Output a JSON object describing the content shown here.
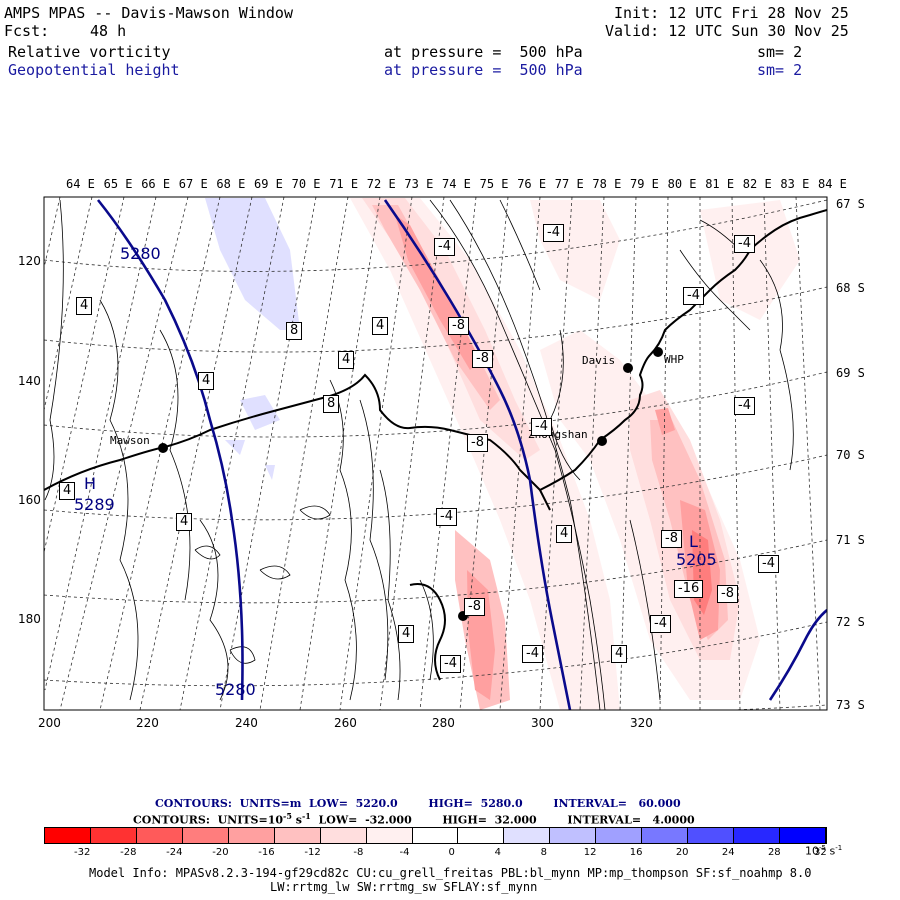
{
  "header": {
    "title": "AMPS MPAS -- Davis-Mawson Window",
    "init": "Init: 12 UTC Fri 28 Nov 25",
    "fcst_label": "Fcst:",
    "fcst_value": "48 h",
    "valid": "Valid: 12 UTC Sun 30 Nov 25",
    "field1": {
      "name": "Relative vorticity",
      "level": "at pressure =  500 hPa",
      "smooth": "sm= 2"
    },
    "field2": {
      "name": "Geopotential height",
      "level": "at pressure =  500 hPa",
      "smooth": "sm= 2"
    }
  },
  "axes": {
    "x_ticks": [
      "200",
      "220",
      "240",
      "260",
      "280",
      "300",
      "320"
    ],
    "y_ticks": [
      "120",
      "140",
      "160",
      "180"
    ],
    "lon_labels": [
      "64 E",
      "65 E",
      "66 E",
      "67 E",
      "68 E",
      "69 E",
      "70 E",
      "71 E",
      "72 E",
      "73 E",
      "74 E",
      "75 E",
      "76 E",
      "77 E",
      "78 E",
      "79 E",
      "80 E",
      "81 E",
      "82 E",
      "83 E",
      "84 E"
    ],
    "lat_labels": [
      "67 S",
      "68 S",
      "69 S",
      "70 S",
      "71 S",
      "72 S",
      "73 S"
    ]
  },
  "stations": [
    {
      "name": "Mawson"
    },
    {
      "name": "Davis"
    },
    {
      "name": "WHP"
    },
    {
      "name": "Zhongshan"
    },
    {
      "name": ""
    }
  ],
  "height_labels": [
    "5280",
    "5280",
    "5289",
    "5205"
  ],
  "high_low": [
    "H",
    "L"
  ],
  "vorticity_labels": [
    "4",
    "-4",
    "-4",
    "-4",
    "-4",
    "4",
    "4",
    "8",
    "4",
    "8",
    "4",
    "4",
    "-8",
    "-8",
    "-4",
    "-4",
    "-8",
    "-8",
    "-4",
    "4",
    "-4",
    "-8",
    "-16",
    "-8",
    "-4",
    "-4",
    "-4",
    "4",
    "4",
    "4",
    "4",
    "-4",
    "-4"
  ],
  "footer": {
    "contour1": {
      "label": "CONTOURS:",
      "units": "UNITS=m",
      "low_label": "LOW=",
      "low": "5220.0",
      "high_label": "HIGH=",
      "high": "5280.0",
      "interval_label": "INTERVAL=",
      "interval": "60.000"
    },
    "contour2": {
      "label": "CONTOURS:",
      "units": "UNITS=10",
      "units_exp": "-5",
      "units_tail": " s",
      "units_tail_exp": "-1",
      "low_label": "LOW=",
      "low": "-32.000",
      "high_label": "HIGH=",
      "high": "32.000",
      "interval_label": "INTERVAL=",
      "interval": "4.0000"
    },
    "colorbar_colors": [
      "#ff0000",
      "#ff3232",
      "#ff5a5a",
      "#ff7d7d",
      "#ffa0a0",
      "#ffc1c1",
      "#ffdede",
      "#fff0f0",
      "#ffffff",
      "#ffffff",
      "#e0e0ff",
      "#c0c0ff",
      "#a0a0ff",
      "#7878ff",
      "#5050ff",
      "#2828ff",
      "#0000ff"
    ],
    "colorbar_ticks": [
      "-32",
      "-28",
      "-24",
      "-20",
      "-16",
      "-12",
      "-8",
      "-4",
      "0",
      "4",
      "8",
      "12",
      "16",
      "20",
      "24",
      "28",
      "32"
    ],
    "colorbar_units": "10",
    "colorbar_units_exp": "-5",
    "colorbar_units_tail": " s",
    "colorbar_units_tail_exp": "-1",
    "model_info": "Model Info: MPASv8.2.3-194-gf29cd82c CU:cu_grell_freitas PBL:bl_mynn MP:mp_thompson SF:sf_noahmp 8.0",
    "model_info2": "LW:rrtmg_lw SW:rrtmg_sw SFLAY:sf_mynn"
  }
}
